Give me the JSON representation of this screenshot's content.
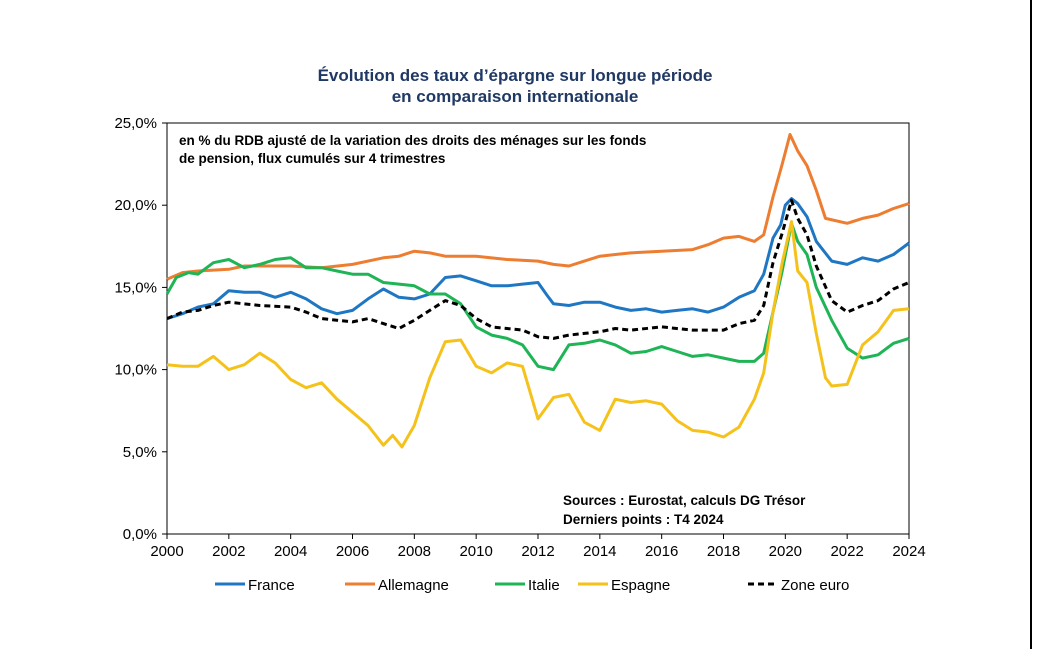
{
  "chart_data": {
    "type": "line",
    "title_lines": [
      "Évolution des taux d’épargne sur longue période",
      "en comparaison internationale"
    ],
    "subtitle_lines": [
      "en % du RDB ajusté de la variation des droits des ménages sur les fonds",
      "de pension, flux cumulés sur 4 trimestres"
    ],
    "sources_lines": [
      "Sources : Eurostat, calculs DG Trésor",
      "Derniers points : T4 2024"
    ],
    "xlim": [
      2000,
      2024
    ],
    "ylim": [
      0,
      25
    ],
    "x_ticks": [
      2000,
      2002,
      2004,
      2006,
      2008,
      2010,
      2012,
      2014,
      2016,
      2018,
      2020,
      2022,
      2024
    ],
    "x_tick_labels": [
      "2000",
      "2002",
      "2004",
      "2006",
      "2008",
      "2010",
      "2012",
      "2014",
      "2016",
      "2018",
      "2020",
      "2022",
      "2024"
    ],
    "y_ticks": [
      0,
      5,
      10,
      15,
      20,
      25
    ],
    "y_tick_labels": [
      "0,0%",
      "5,0%",
      "10,0%",
      "15,0%",
      "20,0%",
      "25,0%"
    ],
    "series": [
      {
        "name": "France",
        "color": "#1f77c4",
        "dash": false,
        "points": [
          [
            2000,
            13.1
          ],
          [
            2000.5,
            13.4
          ],
          [
            2001,
            13.8
          ],
          [
            2001.5,
            14.0
          ],
          [
            2002,
            14.8
          ],
          [
            2002.5,
            14.7
          ],
          [
            2003,
            14.7
          ],
          [
            2003.5,
            14.4
          ],
          [
            2004,
            14.7
          ],
          [
            2004.5,
            14.3
          ],
          [
            2005,
            13.7
          ],
          [
            2005.5,
            13.4
          ],
          [
            2006,
            13.6
          ],
          [
            2006.5,
            14.3
          ],
          [
            2007,
            14.9
          ],
          [
            2007.5,
            14.4
          ],
          [
            2008,
            14.3
          ],
          [
            2008.5,
            14.6
          ],
          [
            2009,
            15.6
          ],
          [
            2009.5,
            15.7
          ],
          [
            2010,
            15.4
          ],
          [
            2010.5,
            15.1
          ],
          [
            2011,
            15.1
          ],
          [
            2011.5,
            15.2
          ],
          [
            2012,
            15.3
          ],
          [
            2012.3,
            14.5
          ],
          [
            2012.5,
            14.0
          ],
          [
            2013,
            13.9
          ],
          [
            2013.5,
            14.1
          ],
          [
            2014,
            14.1
          ],
          [
            2014.5,
            13.8
          ],
          [
            2015,
            13.6
          ],
          [
            2015.5,
            13.7
          ],
          [
            2016,
            13.5
          ],
          [
            2016.5,
            13.6
          ],
          [
            2017,
            13.7
          ],
          [
            2017.5,
            13.5
          ],
          [
            2018,
            13.8
          ],
          [
            2018.5,
            14.4
          ],
          [
            2019,
            14.8
          ],
          [
            2019.3,
            15.8
          ],
          [
            2019.6,
            18.0
          ],
          [
            2019.85,
            18.8
          ],
          [
            2020,
            20.0
          ],
          [
            2020.2,
            20.4
          ],
          [
            2020.4,
            20.1
          ],
          [
            2020.7,
            19.3
          ],
          [
            2021,
            17.8
          ],
          [
            2021.5,
            16.6
          ],
          [
            2022,
            16.4
          ],
          [
            2022.5,
            16.8
          ],
          [
            2023,
            16.6
          ],
          [
            2023.5,
            17.0
          ],
          [
            2024,
            17.7
          ]
        ]
      },
      {
        "name": "Allemagne",
        "color": "#ed7d31",
        "dash": false,
        "points": [
          [
            2000,
            15.5
          ],
          [
            2000.5,
            15.9
          ],
          [
            2001,
            16.0
          ],
          [
            2002,
            16.1
          ],
          [
            2002.5,
            16.3
          ],
          [
            2003,
            16.3
          ],
          [
            2004,
            16.3
          ],
          [
            2005,
            16.2
          ],
          [
            2006,
            16.4
          ],
          [
            2007,
            16.8
          ],
          [
            2007.5,
            16.9
          ],
          [
            2008,
            17.2
          ],
          [
            2008.5,
            17.1
          ],
          [
            2009,
            16.9
          ],
          [
            2010,
            16.9
          ],
          [
            2011,
            16.7
          ],
          [
            2012,
            16.6
          ],
          [
            2012.5,
            16.4
          ],
          [
            2013,
            16.3
          ],
          [
            2013.5,
            16.6
          ],
          [
            2014,
            16.9
          ],
          [
            2014.5,
            17.0
          ],
          [
            2015,
            17.1
          ],
          [
            2016,
            17.2
          ],
          [
            2017,
            17.3
          ],
          [
            2017.5,
            17.6
          ],
          [
            2018,
            18.0
          ],
          [
            2018.5,
            18.1
          ],
          [
            2019,
            17.8
          ],
          [
            2019.3,
            18.2
          ],
          [
            2019.6,
            20.5
          ],
          [
            2019.9,
            22.5
          ],
          [
            2020.15,
            24.3
          ],
          [
            2020.4,
            23.3
          ],
          [
            2020.7,
            22.4
          ],
          [
            2021,
            20.9
          ],
          [
            2021.3,
            19.2
          ],
          [
            2022,
            18.9
          ],
          [
            2022.5,
            19.2
          ],
          [
            2023,
            19.4
          ],
          [
            2023.5,
            19.8
          ],
          [
            2024,
            20.1
          ]
        ]
      },
      {
        "name": "Italie",
        "color": "#1fb456",
        "dash": false,
        "points": [
          [
            2000,
            14.6
          ],
          [
            2000.3,
            15.6
          ],
          [
            2000.7,
            15.9
          ],
          [
            2001,
            15.8
          ],
          [
            2001.5,
            16.5
          ],
          [
            2002,
            16.7
          ],
          [
            2002.5,
            16.2
          ],
          [
            2003,
            16.4
          ],
          [
            2003.5,
            16.7
          ],
          [
            2004,
            16.8
          ],
          [
            2004.5,
            16.2
          ],
          [
            2005,
            16.2
          ],
          [
            2005.5,
            16.0
          ],
          [
            2006,
            15.8
          ],
          [
            2006.5,
            15.8
          ],
          [
            2007,
            15.3
          ],
          [
            2007.5,
            15.2
          ],
          [
            2008,
            15.1
          ],
          [
            2008.5,
            14.6
          ],
          [
            2009,
            14.6
          ],
          [
            2009.5,
            14.0
          ],
          [
            2010,
            12.6
          ],
          [
            2010.5,
            12.1
          ],
          [
            2011,
            11.9
          ],
          [
            2011.5,
            11.5
          ],
          [
            2012,
            10.2
          ],
          [
            2012.5,
            10.0
          ],
          [
            2013,
            11.5
          ],
          [
            2013.5,
            11.6
          ],
          [
            2014,
            11.8
          ],
          [
            2014.5,
            11.5
          ],
          [
            2015,
            11.0
          ],
          [
            2015.5,
            11.1
          ],
          [
            2016,
            11.4
          ],
          [
            2016.5,
            11.1
          ],
          [
            2017,
            10.8
          ],
          [
            2017.5,
            10.9
          ],
          [
            2018,
            10.7
          ],
          [
            2018.5,
            10.5
          ],
          [
            2019,
            10.5
          ],
          [
            2019.3,
            11.0
          ],
          [
            2019.6,
            13.5
          ],
          [
            2019.9,
            16.0
          ],
          [
            2020.2,
            18.9
          ],
          [
            2020.4,
            17.8
          ],
          [
            2020.7,
            17.0
          ],
          [
            2021,
            15.0
          ],
          [
            2021.5,
            13.0
          ],
          [
            2022,
            11.3
          ],
          [
            2022.5,
            10.7
          ],
          [
            2023,
            10.9
          ],
          [
            2023.5,
            11.6
          ],
          [
            2024,
            11.9
          ]
        ]
      },
      {
        "name": "Espagne",
        "color": "#f5c21b",
        "dash": false,
        "points": [
          [
            2000,
            10.3
          ],
          [
            2000.5,
            10.2
          ],
          [
            2001,
            10.2
          ],
          [
            2001.5,
            10.8
          ],
          [
            2002,
            10.0
          ],
          [
            2002.5,
            10.3
          ],
          [
            2003,
            11.0
          ],
          [
            2003.5,
            10.4
          ],
          [
            2004,
            9.4
          ],
          [
            2004.5,
            8.9
          ],
          [
            2005,
            9.2
          ],
          [
            2005.5,
            8.2
          ],
          [
            2006,
            7.4
          ],
          [
            2006.5,
            6.6
          ],
          [
            2007,
            5.4
          ],
          [
            2007.3,
            6.0
          ],
          [
            2007.6,
            5.3
          ],
          [
            2008,
            6.6
          ],
          [
            2008.5,
            9.5
          ],
          [
            2009,
            11.7
          ],
          [
            2009.5,
            11.8
          ],
          [
            2010,
            10.2
          ],
          [
            2010.5,
            9.8
          ],
          [
            2011,
            10.4
          ],
          [
            2011.5,
            10.2
          ],
          [
            2012,
            7.0
          ],
          [
            2012.5,
            8.3
          ],
          [
            2013,
            8.5
          ],
          [
            2013.5,
            6.8
          ],
          [
            2014,
            6.3
          ],
          [
            2014.5,
            8.2
          ],
          [
            2015,
            8.0
          ],
          [
            2015.5,
            8.1
          ],
          [
            2016,
            7.9
          ],
          [
            2016.5,
            6.9
          ],
          [
            2017,
            6.3
          ],
          [
            2017.5,
            6.2
          ],
          [
            2018,
            5.9
          ],
          [
            2018.5,
            6.5
          ],
          [
            2019,
            8.2
          ],
          [
            2019.3,
            9.8
          ],
          [
            2019.6,
            13.5
          ],
          [
            2019.9,
            16.5
          ],
          [
            2020.2,
            19.0
          ],
          [
            2020.4,
            16.0
          ],
          [
            2020.7,
            15.3
          ],
          [
            2021,
            12.2
          ],
          [
            2021.3,
            9.5
          ],
          [
            2021.5,
            9.0
          ],
          [
            2022,
            9.1
          ],
          [
            2022.5,
            11.5
          ],
          [
            2023,
            12.3
          ],
          [
            2023.5,
            13.6
          ],
          [
            2024,
            13.7
          ]
        ]
      },
      {
        "name": "Zone euro",
        "color": "#000000",
        "dash": true,
        "points": [
          [
            2000,
            13.1
          ],
          [
            2000.5,
            13.5
          ],
          [
            2001,
            13.6
          ],
          [
            2001.5,
            13.9
          ],
          [
            2002,
            14.1
          ],
          [
            2003,
            13.9
          ],
          [
            2004,
            13.8
          ],
          [
            2004.5,
            13.5
          ],
          [
            2005,
            13.1
          ],
          [
            2006,
            12.9
          ],
          [
            2006.5,
            13.1
          ],
          [
            2007,
            12.8
          ],
          [
            2007.5,
            12.5
          ],
          [
            2008,
            13.0
          ],
          [
            2008.5,
            13.6
          ],
          [
            2009,
            14.2
          ],
          [
            2009.5,
            13.9
          ],
          [
            2010,
            13.1
          ],
          [
            2010.5,
            12.6
          ],
          [
            2011,
            12.5
          ],
          [
            2011.5,
            12.4
          ],
          [
            2012,
            12.0
          ],
          [
            2012.5,
            11.9
          ],
          [
            2013,
            12.1
          ],
          [
            2013.5,
            12.2
          ],
          [
            2014,
            12.3
          ],
          [
            2014.5,
            12.5
          ],
          [
            2015,
            12.4
          ],
          [
            2016,
            12.6
          ],
          [
            2017,
            12.4
          ],
          [
            2017.5,
            12.4
          ],
          [
            2018,
            12.4
          ],
          [
            2018.5,
            12.8
          ],
          [
            2019,
            13.0
          ],
          [
            2019.3,
            13.9
          ],
          [
            2019.6,
            16.5
          ],
          [
            2019.9,
            18.3
          ],
          [
            2020.2,
            20.3
          ],
          [
            2020.4,
            19.2
          ],
          [
            2020.7,
            18.2
          ],
          [
            2021,
            16.3
          ],
          [
            2021.5,
            14.2
          ],
          [
            2022,
            13.5
          ],
          [
            2022.5,
            13.9
          ],
          [
            2023,
            14.2
          ],
          [
            2023.5,
            14.9
          ],
          [
            2024,
            15.3
          ]
        ]
      }
    ]
  }
}
